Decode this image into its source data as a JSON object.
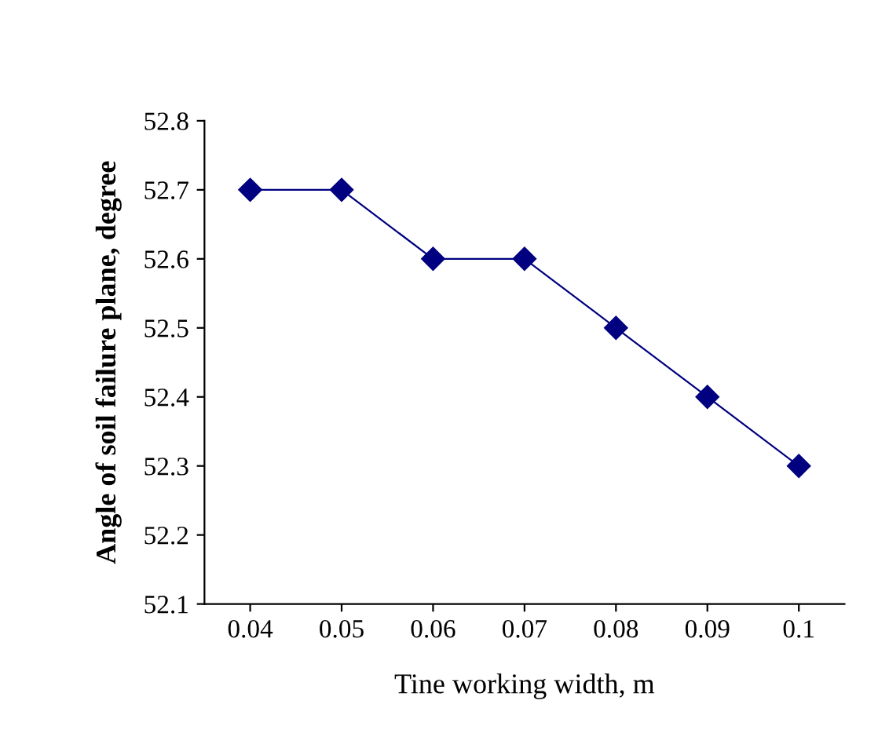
{
  "chart_data": {
    "type": "line",
    "xlabel": "Tine working width, m",
    "ylabel": "Angle of soil failure plane, degree",
    "categories": [
      "0.04",
      "0.05",
      "0.06",
      "0.07",
      "0.08",
      "0.09",
      "0.1"
    ],
    "series": [
      {
        "color": "#000080",
        "values": [
          52.7,
          52.7,
          52.6,
          52.6,
          52.5,
          52.4,
          52.3
        ]
      }
    ],
    "ylim": [
      52.1,
      52.8
    ],
    "yticks": [
      52.1,
      52.2,
      52.3,
      52.4,
      52.5,
      52.6,
      52.7,
      52.8
    ],
    "grid": false,
    "legend": false,
    "marker": "diamond",
    "line_style": "solid"
  }
}
